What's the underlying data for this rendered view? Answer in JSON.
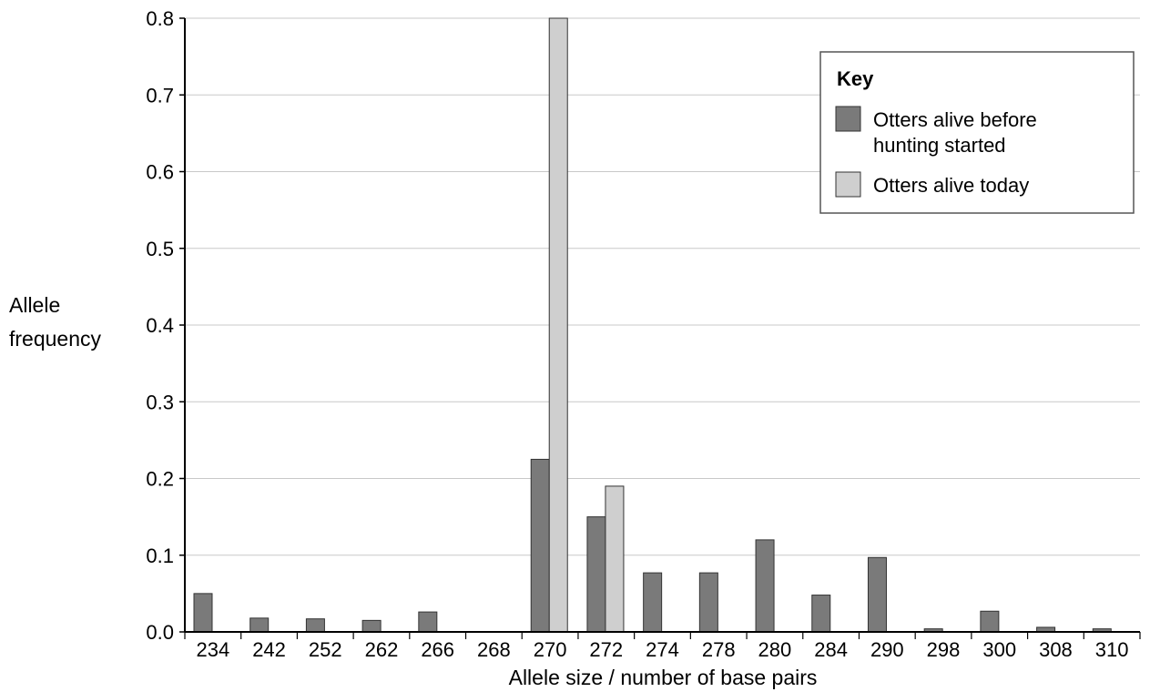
{
  "chart_data": {
    "type": "bar",
    "xlabel": "Allele size / number of base pairs",
    "ylabel": [
      "Allele",
      "frequency"
    ],
    "ylim": [
      0,
      0.8
    ],
    "yticks": [
      "0.0",
      "0.1",
      "0.2",
      "0.3",
      "0.4",
      "0.5",
      "0.6",
      "0.7",
      "0.8"
    ],
    "grid": true,
    "legend_position": "top-right",
    "categories": [
      "234",
      "242",
      "252",
      "262",
      "266",
      "268",
      "270",
      "272",
      "274",
      "278",
      "280",
      "284",
      "290",
      "298",
      "300",
      "308",
      "310"
    ],
    "series": [
      {
        "name": [
          "Otters alive before",
          "hunting started"
        ],
        "color": "#7a7a7a",
        "values": [
          0.05,
          0.018,
          0.017,
          0.015,
          0.026,
          0,
          0.225,
          0.15,
          0.077,
          0.077,
          0.12,
          0.048,
          0.097,
          0.004,
          0.027,
          0.006,
          0.004
        ]
      },
      {
        "name": [
          "Otters alive today"
        ],
        "color": "#cfcfcf",
        "values": [
          0,
          0,
          0,
          0,
          0,
          0,
          0.8,
          0.19,
          0,
          0,
          0,
          0,
          0,
          0,
          0,
          0,
          0
        ]
      }
    ]
  },
  "legend": {
    "title": "Key"
  }
}
